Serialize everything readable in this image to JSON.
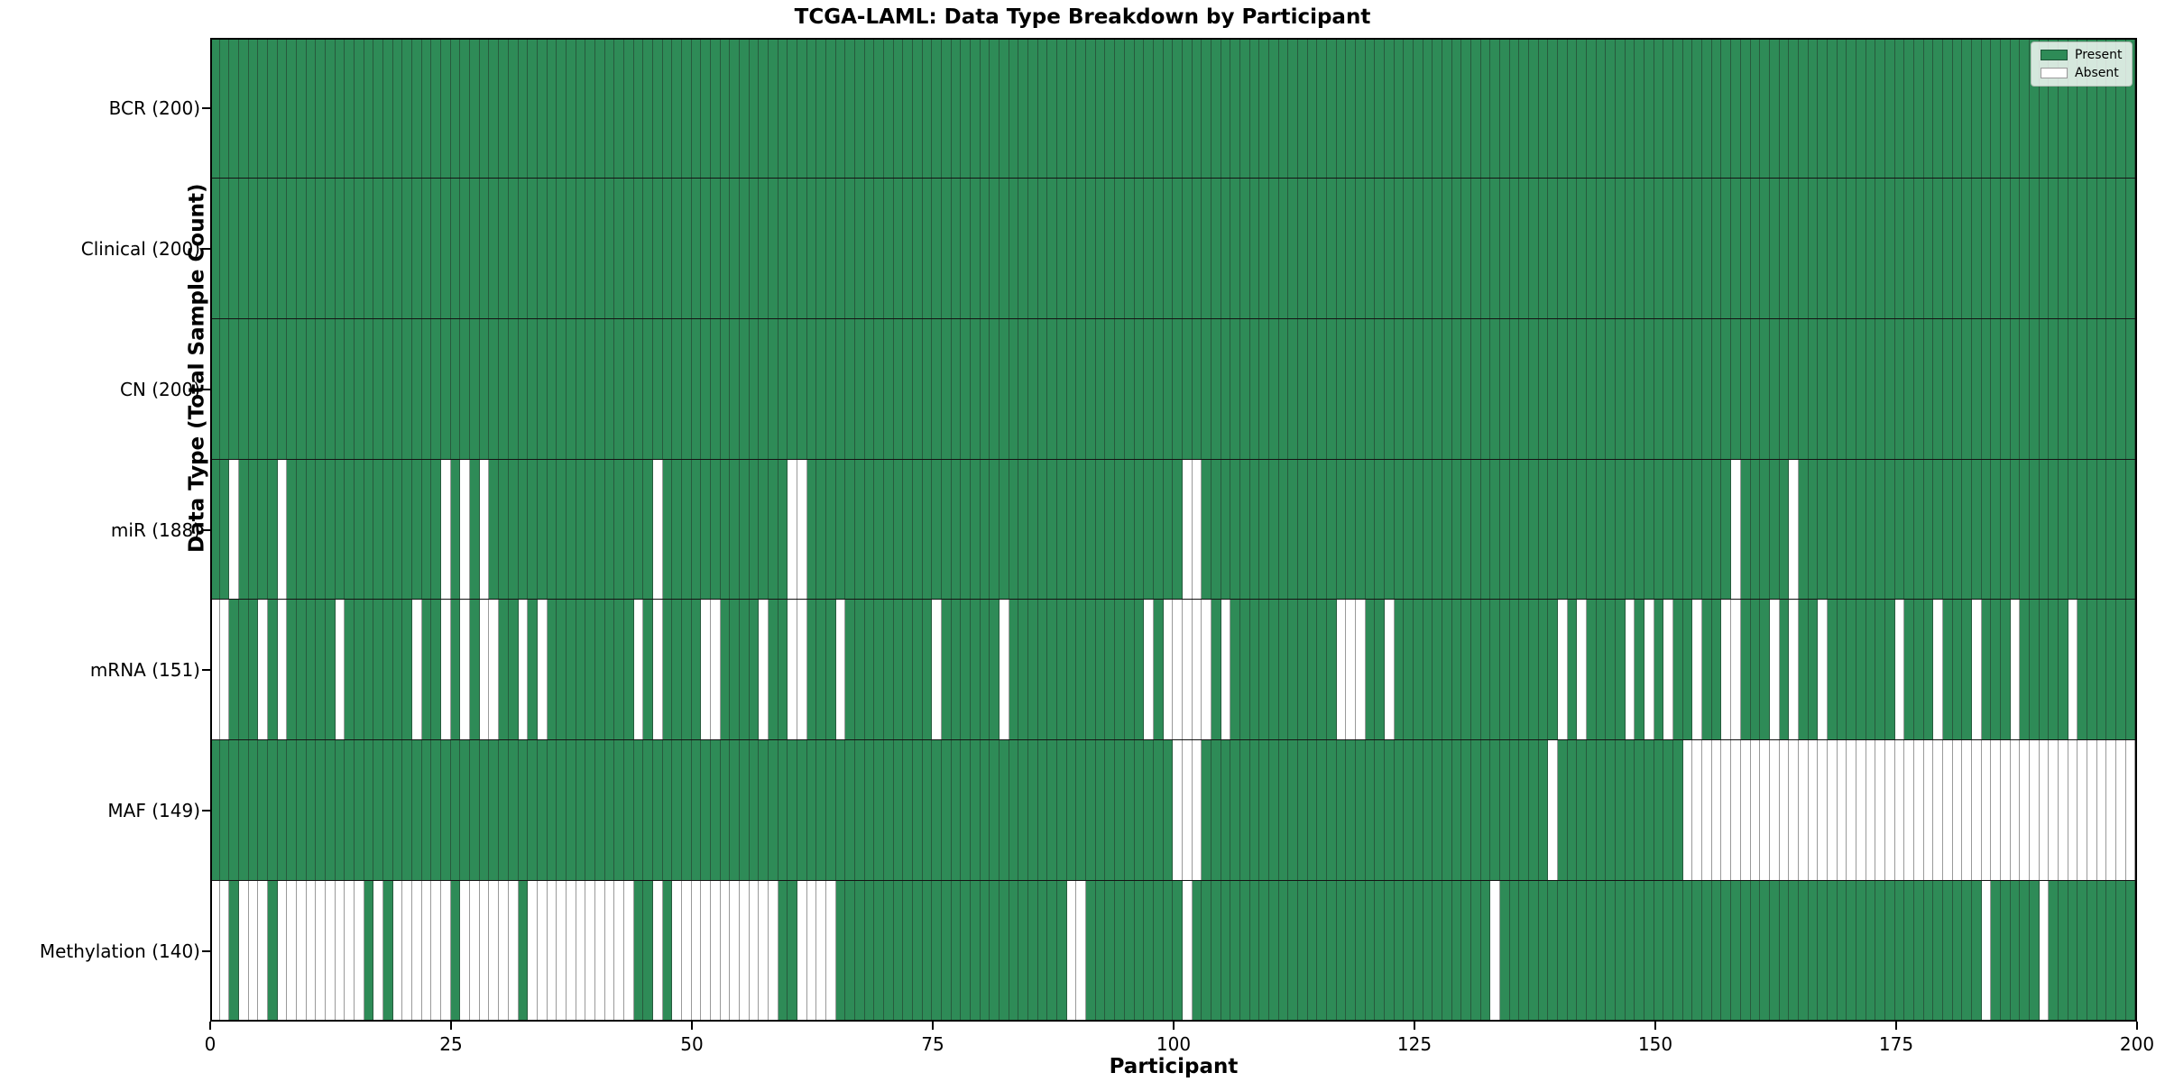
{
  "chart_data": {
    "type": "heatmap",
    "title": "TCGA-LAML: Data Type Breakdown by Participant",
    "xlabel": "Participant",
    "ylabel": "Data Type (Total Sample Count)",
    "x_range": [
      0,
      200
    ],
    "x_ticks": [
      0,
      25,
      50,
      75,
      100,
      125,
      150,
      175,
      200
    ],
    "n_participants": 200,
    "grid": "cell-borders",
    "legend_position": "upper-right",
    "legend": {
      "present": "Present",
      "absent": "Absent"
    },
    "colors": {
      "present": "#2e8b57",
      "absent": "#ffffff",
      "cell_border": "rgba(30,30,30,0.45)",
      "row_border": "#141414"
    },
    "rows": [
      {
        "label": "BCR (200)",
        "data_type": "BCR",
        "total_samples": 200,
        "absent_participants": []
      },
      {
        "label": "Clinical (200)",
        "data_type": "Clinical",
        "total_samples": 200,
        "absent_participants": []
      },
      {
        "label": "CN (200)",
        "data_type": "CN",
        "total_samples": 200,
        "absent_participants": []
      },
      {
        "label": "miR (188)",
        "data_type": "miR",
        "total_samples": 188,
        "absent_participants": [
          2,
          7,
          24,
          26,
          28,
          46,
          60,
          61,
          101,
          102,
          158,
          164
        ]
      },
      {
        "label": "mRNA (151)",
        "data_type": "mRNA",
        "total_samples": 151,
        "absent_participants": [
          0,
          1,
          5,
          7,
          13,
          21,
          24,
          26,
          28,
          29,
          32,
          34,
          44,
          46,
          51,
          52,
          57,
          60,
          61,
          65,
          75,
          82,
          97,
          99,
          100,
          101,
          102,
          103,
          105,
          117,
          118,
          119,
          122,
          140,
          142,
          147,
          149,
          151,
          154,
          157,
          158,
          162,
          164,
          167,
          175,
          179,
          183,
          187,
          193
        ]
      },
      {
        "label": "MAF (149)",
        "data_type": "MAF",
        "total_samples": 149,
        "absent_participants": [
          100,
          101,
          102,
          139,
          153,
          154,
          155,
          156,
          157,
          158,
          159,
          160,
          161,
          162,
          163,
          164,
          165,
          166,
          167,
          168,
          169,
          170,
          171,
          172,
          173,
          174,
          175,
          176,
          177,
          178,
          179,
          180,
          181,
          182,
          183,
          184,
          185,
          186,
          187,
          188,
          189,
          190,
          191,
          192,
          193,
          194,
          195,
          196,
          197,
          198,
          199
        ]
      },
      {
        "label": "Methylation (140)",
        "data_type": "Methylation",
        "total_samples": 140,
        "absent_participants": [
          0,
          1,
          3,
          4,
          5,
          7,
          8,
          9,
          10,
          11,
          12,
          13,
          14,
          15,
          17,
          19,
          20,
          21,
          22,
          23,
          24,
          26,
          27,
          28,
          29,
          30,
          31,
          33,
          34,
          35,
          36,
          37,
          38,
          39,
          40,
          41,
          42,
          43,
          46,
          48,
          49,
          50,
          51,
          52,
          53,
          54,
          55,
          56,
          57,
          58,
          61,
          62,
          63,
          64,
          89,
          90,
          101,
          133,
          184,
          190
        ]
      }
    ]
  }
}
